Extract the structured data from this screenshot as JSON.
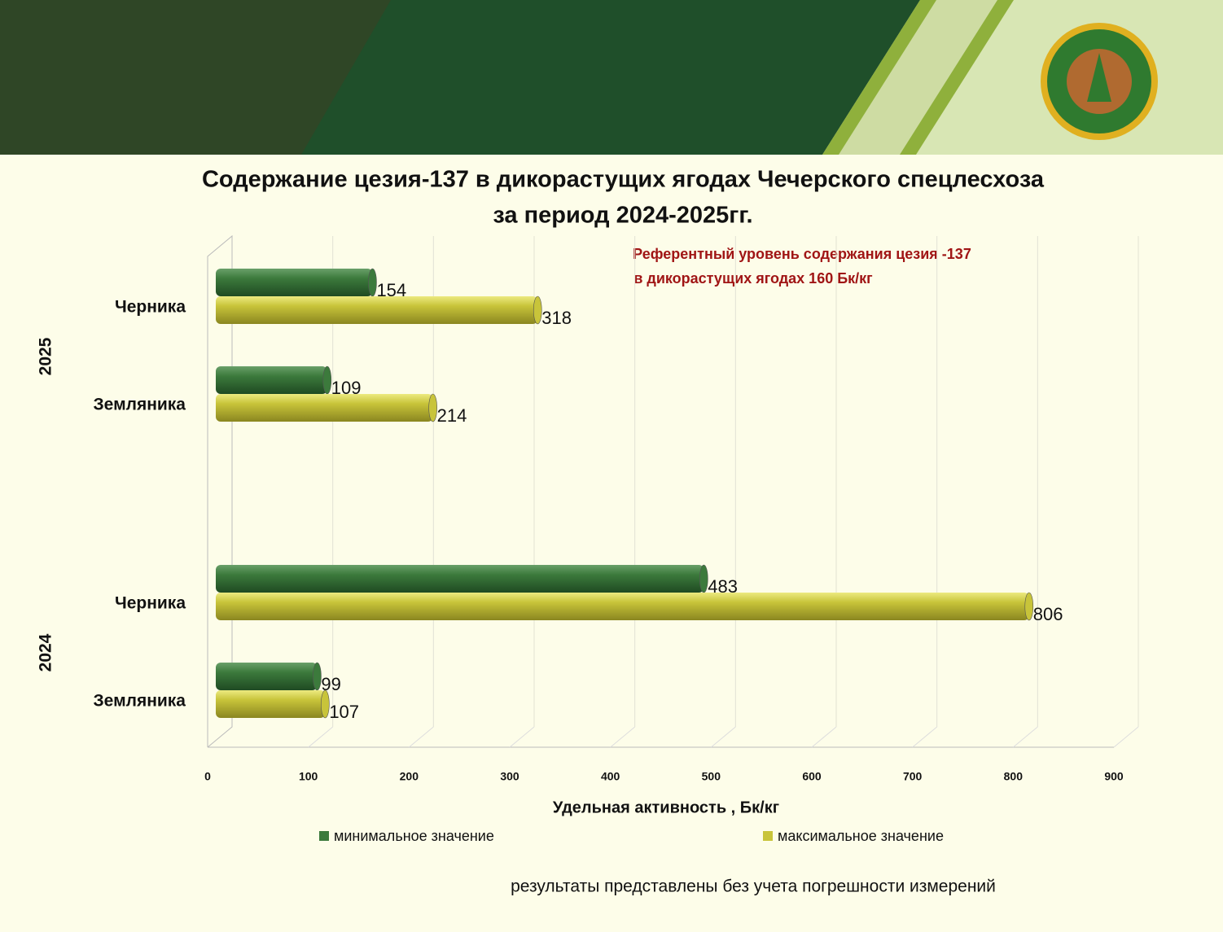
{
  "chart_data": {
    "type": "bar",
    "title": "Содержание цезия-137 в дикорастущих ягодах Чечерского спецлесхоза",
    "subtitle": "за период 2024-2025гг.",
    "annotation": [
      "Референтный уровень содержания цезия -137",
      "в дикорастущих ягодах 160 Бк/кг"
    ],
    "group_labels": [
      "2025",
      "2024"
    ],
    "categories": [
      "Черника",
      "Земляника",
      "Черника",
      "Земляника"
    ],
    "series": [
      {
        "name": "минимальное значение",
        "color": "#3c7a3c",
        "values": [
          154,
          109,
          483,
          99
        ]
      },
      {
        "name": "максимальное значение",
        "color": "#c8c43a",
        "values": [
          318,
          214,
          806,
          107
        ]
      }
    ],
    "xlabel": "Удельная активность , Бк/кг",
    "xlim": [
      0,
      900
    ],
    "xticks": [
      0,
      100,
      200,
      300,
      400,
      500,
      600,
      700,
      800,
      900
    ],
    "grid": true,
    "note": "результаты представлены без учета погрешности измерений"
  }
}
